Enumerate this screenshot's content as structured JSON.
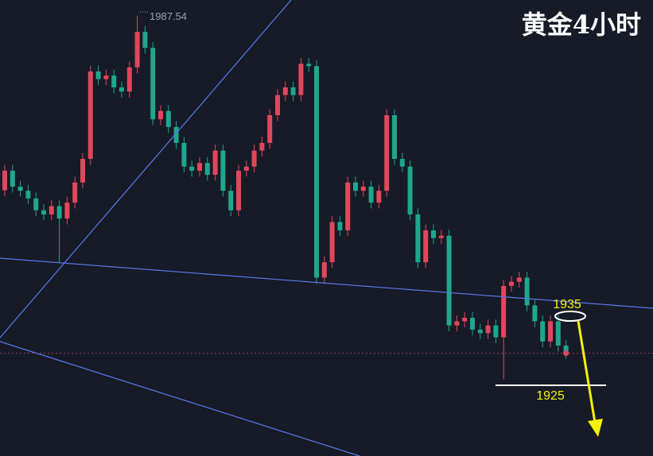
{
  "chart_data": {
    "type": "candlestick",
    "title": "黄金4小时",
    "annotations": {
      "high_label": "1987.54",
      "level_upper": "1935",
      "level_lower": "1925"
    },
    "ylim": [
      1913,
      1990.2
    ],
    "up_color": "#e0475c",
    "down_color": "#1fa68c",
    "open": [
      1958.0,
      1961.3,
      1958.6,
      1957.9,
      1956.6,
      1954.6,
      1953.9,
      1955.3,
      1953.2,
      1955.9,
      1959.3,
      1963.3,
      1978.1,
      1976.8,
      1977.4,
      1975.4,
      1974.7,
      1978.8,
      1984.8,
      1982.1,
      1970.0,
      1971.4,
      1968.7,
      1966.0,
      1962.0,
      1961.3,
      1962.6,
      1960.6,
      1964.7,
      1957.9,
      1954.6,
      1961.3,
      1962.0,
      1964.7,
      1966.0,
      1970.7,
      1974.1,
      1975.4,
      1974.1,
      1979.4,
      1979.0,
      1943.2,
      1945.8,
      1952.6,
      1951.2,
      1959.3,
      1957.9,
      1958.6,
      1955.9,
      1957.9,
      1970.7,
      1963.3,
      1962.0,
      1953.9,
      1945.8,
      1951.2,
      1949.9,
      1950.3,
      1935.1,
      1935.8,
      1936.4,
      1934.4,
      1933.8,
      1935.1,
      1933.1,
      1941.8,
      1942.5,
      1943.2,
      1938.5,
      1935.8,
      1932.4,
      1935.8,
      1931.7
    ],
    "high": [
      1962.3,
      1962.3,
      1959.6,
      1958.9,
      1957.6,
      1955.6,
      1956.3,
      1956.3,
      1956.9,
      1960.3,
      1964.3,
      1979.1,
      1979.1,
      1978.4,
      1978.4,
      1976.4,
      1979.8,
      1987.54,
      1985.8,
      1983.1,
      1972.4,
      1972.4,
      1969.7,
      1967.0,
      1963.0,
      1963.6,
      1963.6,
      1965.7,
      1965.7,
      1958.9,
      1962.3,
      1963.0,
      1965.7,
      1967.0,
      1971.7,
      1975.1,
      1976.4,
      1976.4,
      1980.4,
      1980.4,
      1980.0,
      1946.8,
      1953.6,
      1953.6,
      1960.3,
      1960.3,
      1959.6,
      1959.6,
      1958.9,
      1971.7,
      1971.7,
      1964.3,
      1963.0,
      1954.9,
      1952.2,
      1952.2,
      1951.3,
      1951.3,
      1936.8,
      1937.4,
      1937.4,
      1935.4,
      1936.1,
      1936.1,
      1942.8,
      1943.5,
      1944.2,
      1944.2,
      1939.5,
      1936.8,
      1936.8,
      1936.8,
      1932.7
    ],
    "low": [
      1957.0,
      1957.6,
      1956.9,
      1955.6,
      1953.6,
      1952.9,
      1952.9,
      1945.8,
      1952.2,
      1954.9,
      1958.3,
      1962.3,
      1975.8,
      1975.8,
      1974.4,
      1973.7,
      1973.7,
      1977.8,
      1981.1,
      1969.0,
      1969.0,
      1967.7,
      1965.0,
      1961.0,
      1960.3,
      1960.3,
      1959.6,
      1959.6,
      1956.9,
      1953.6,
      1953.6,
      1960.3,
      1961.0,
      1963.7,
      1965.0,
      1969.7,
      1973.1,
      1973.1,
      1973.1,
      1978.0,
      1942.2,
      1942.2,
      1944.8,
      1950.2,
      1950.2,
      1956.9,
      1956.9,
      1954.9,
      1954.9,
      1956.9,
      1962.3,
      1961.0,
      1952.9,
      1944.8,
      1944.8,
      1948.9,
      1948.9,
      1934.1,
      1934.1,
      1934.8,
      1933.4,
      1932.8,
      1932.8,
      1932.1,
      1926.0,
      1940.8,
      1941.5,
      1937.5,
      1934.8,
      1931.4,
      1931.4,
      1930.7,
      1929.5
    ],
    "close": [
      1961.3,
      1958.6,
      1957.9,
      1956.6,
      1954.6,
      1953.9,
      1955.3,
      1953.2,
      1955.9,
      1959.3,
      1963.3,
      1978.1,
      1976.8,
      1977.4,
      1975.4,
      1974.7,
      1978.8,
      1984.8,
      1982.1,
      1970.0,
      1971.4,
      1968.7,
      1966.0,
      1962.0,
      1961.3,
      1962.6,
      1960.6,
      1964.7,
      1957.9,
      1954.6,
      1961.3,
      1962.0,
      1964.7,
      1966.0,
      1970.7,
      1974.1,
      1975.4,
      1974.1,
      1979.4,
      1979.0,
      1943.2,
      1945.8,
      1952.6,
      1951.2,
      1959.3,
      1957.9,
      1958.6,
      1955.9,
      1957.9,
      1970.7,
      1963.3,
      1962.0,
      1953.9,
      1945.8,
      1951.2,
      1949.9,
      1950.3,
      1935.1,
      1935.8,
      1936.4,
      1934.4,
      1933.8,
      1935.1,
      1933.1,
      1941.8,
      1942.5,
      1943.2,
      1938.5,
      1935.8,
      1932.4,
      1935.8,
      1931.7,
      1930.4
    ]
  }
}
